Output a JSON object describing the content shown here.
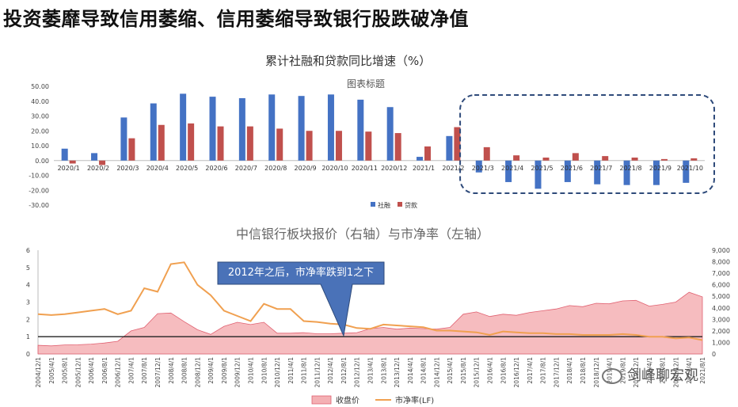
{
  "page_title": "投资萎靡导致信用萎缩、信用萎缩导致银行股跌破净值",
  "chart_data": [
    {
      "type": "bar",
      "title": "累计社融和贷款同比增速（%）",
      "subtitle": "图表标题",
      "categories": [
        "2020/1",
        "2020/2",
        "2020/3",
        "2020/4",
        "2020/5",
        "2020/6",
        "2020/7",
        "2020/8",
        "2020/9",
        "2020/10",
        "2020/11",
        "2020/12",
        "2021/1",
        "2021/2",
        "2021/3",
        "2021/4",
        "2021/5",
        "2021/6",
        "2021/7",
        "2021/8",
        "2021/9",
        "2021/10"
      ],
      "series": [
        {
          "name": "社融",
          "color": "#4472c4",
          "values": [
            8,
            5,
            29,
            38.5,
            45,
            43,
            42,
            44.5,
            43.5,
            44.5,
            41,
            36,
            2.5,
            16.5,
            -8,
            -14.5,
            -19,
            -14.5,
            -16,
            -16.5,
            -16.5,
            -15
          ]
        },
        {
          "name": "贷款",
          "color": "#c0504d",
          "values": [
            -2,
            -3,
            15,
            24,
            25,
            23,
            23,
            21.5,
            20,
            20,
            19.5,
            18.5,
            9.5,
            22.5,
            9,
            3.5,
            2,
            5,
            3,
            2,
            1,
            1.5
          ]
        }
      ],
      "ylim": [
        -30,
        50
      ],
      "yticks": [
        "50.00",
        "40.00",
        "30.00",
        "20.00",
        "10.00",
        "0.00",
        "-10.00",
        "-20.00",
        "-30.00"
      ],
      "legend": "bottom"
    },
    {
      "type": "area",
      "title": "中信银行板块报价（右轴）与市净率（左轴）",
      "categories": [
        "2004/12/1",
        "2005/4/1",
        "2005/8/1",
        "2005/12/1",
        "2006/4/1",
        "2006/8/1",
        "2006/12/1",
        "2007/4/1",
        "2007/8/1",
        "2007/12/1",
        "2008/4/1",
        "2008/8/1",
        "2008/12/1",
        "2009/4/1",
        "2009/8/1",
        "2009/12/1",
        "2010/4/1",
        "2010/8/1",
        "2010/12/1",
        "2011/4/1",
        "2011/8/1",
        "2011/12/1",
        "2012/4/1",
        "2012/8/1",
        "2012/12/1",
        "2013/4/1",
        "2013/8/1",
        "2013/12/1",
        "2014/4/1",
        "2014/8/1",
        "2014/12/1",
        "2015/4/1",
        "2015/8/1",
        "2015/12/1",
        "2016/4/1",
        "2016/8/1",
        "2016/12/1",
        "2017/4/1",
        "2017/8/1",
        "2017/12/1",
        "2018/4/1",
        "2018/8/1",
        "2018/12/1",
        "2019/4/1",
        "2019/8/1",
        "2019/12/1",
        "2020/4/1",
        "2020/8/1",
        "2020/12/1",
        "2021/4/1",
        "2021/8/1"
      ],
      "series": [
        {
          "name": "收盘价",
          "axis": "right",
          "color": "#f4b0b4",
          "values": [
            750,
            700,
            780,
            800,
            850,
            950,
            1100,
            2000,
            2300,
            3500,
            3550,
            2800,
            2100,
            1700,
            2400,
            2750,
            2550,
            2750,
            1800,
            1800,
            1850,
            1750,
            1750,
            1800,
            1850,
            2200,
            2300,
            2150,
            2250,
            2200,
            2150,
            2300,
            3450,
            3650,
            3250,
            3450,
            3350,
            3600,
            3750,
            3900,
            4200,
            4100,
            4400,
            4350,
            4600,
            4650,
            4150,
            4300,
            4500,
            5350,
            4950
          ]
        },
        {
          "name": "市净率(LF)",
          "axis": "left",
          "color": "#f0a050",
          "values": [
            2.3,
            2.25,
            2.3,
            2.4,
            2.5,
            2.6,
            2.3,
            2.5,
            3.8,
            3.6,
            5.2,
            5.3,
            4.0,
            3.4,
            2.5,
            2.2,
            1.9,
            2.9,
            2.6,
            2.6,
            1.9,
            1.85,
            1.75,
            1.7,
            1.5,
            1.45,
            1.7,
            1.65,
            1.6,
            1.55,
            1.35,
            1.35,
            1.3,
            1.25,
            1.1,
            1.3,
            1.25,
            1.2,
            1.2,
            1.15,
            1.15,
            1.1,
            1.1,
            1.1,
            1.15,
            1.1,
            1.0,
            1.0,
            0.9,
            0.95,
            0.8
          ]
        }
      ],
      "reference_line": {
        "axis": "left",
        "value": 1
      },
      "ylim_left": [
        0,
        6
      ],
      "ylim_right": [
        0,
        9000
      ],
      "yticks_left": [
        "6",
        "5",
        "4",
        "3",
        "2",
        "1",
        "0"
      ],
      "yticks_right": [
        "9,000",
        "8,000",
        "7,000",
        "6,000",
        "5,000",
        "4,000",
        "3,000",
        "2,000",
        "1,000",
        "0"
      ],
      "legend": "bottom"
    }
  ],
  "annotation": "2012年之后，市净率跌到1之下",
  "watermark": "剑峰聊宏观"
}
